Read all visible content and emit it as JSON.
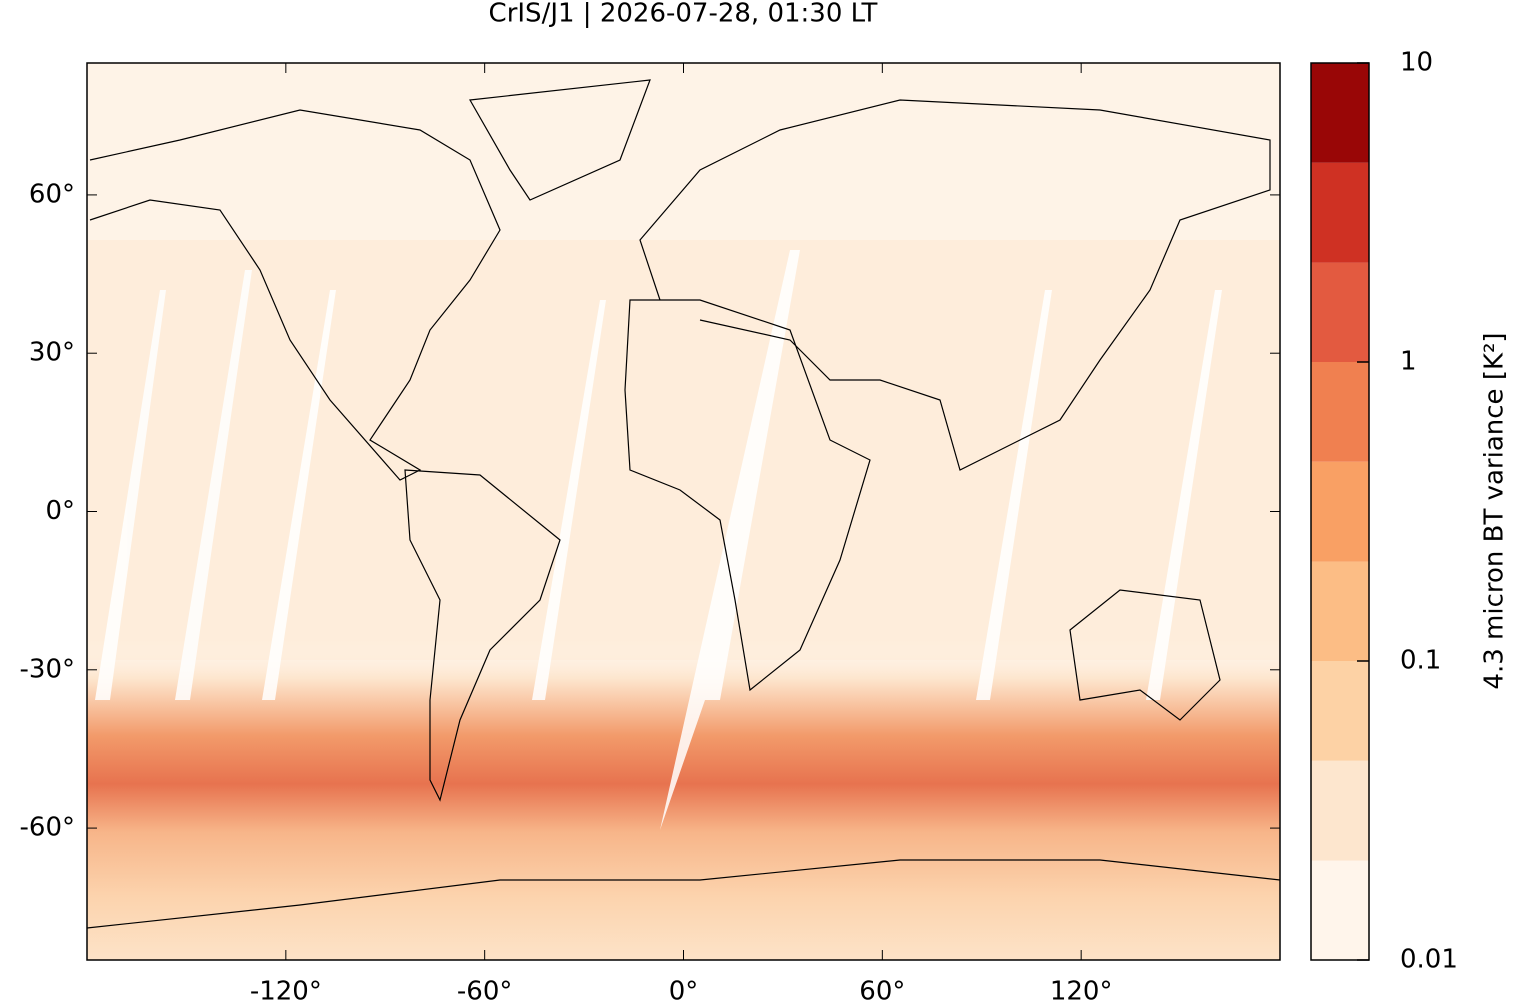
{
  "chart_data": {
    "type": "map",
    "title": "CrIS/J1 | 2026-07-28, 01:30 LT",
    "xlim": [
      -180,
      180
    ],
    "ylim": [
      -85,
      85
    ],
    "xticks": [
      {
        "value": -120,
        "label": "-120°"
      },
      {
        "value": -60,
        "label": "-60°"
      },
      {
        "value": 0,
        "label": "0°"
      },
      {
        "value": 60,
        "label": "60°"
      },
      {
        "value": 120,
        "label": "120°"
      }
    ],
    "yticks": [
      {
        "value": -60,
        "label": "-60°"
      },
      {
        "value": -30,
        "label": "-30°"
      },
      {
        "value": 0,
        "label": "0°"
      },
      {
        "value": 30,
        "label": "30°"
      },
      {
        "value": 60,
        "label": "60°"
      }
    ],
    "colorbar": {
      "label": "4.3 micron BT variance [K²]",
      "scale": "log",
      "lim": [
        0.01,
        10
      ],
      "ticks": [
        0.01,
        0.1,
        1,
        10
      ],
      "levels": [
        0.01,
        0.0215,
        0.0464,
        0.1,
        0.215,
        0.464,
        1,
        2.15,
        4.64,
        10
      ],
      "colors": [
        "#fff5eb",
        "#fde6ce",
        "#fdd2a5",
        "#fcbd85",
        "#f9a064",
        "#f08050",
        "#e35a40",
        "#cf3123",
        "#990606"
      ]
    }
  }
}
